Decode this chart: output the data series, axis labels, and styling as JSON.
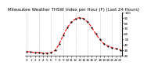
{
  "title": "Milwaukee Weather THSW Index per Hour (F) (Last 24 Hours)",
  "hours": [
    0,
    1,
    2,
    3,
    4,
    5,
    6,
    7,
    8,
    9,
    10,
    11,
    12,
    13,
    14,
    15,
    16,
    17,
    18,
    19,
    20,
    21,
    22,
    23
  ],
  "values": [
    28,
    27,
    26,
    26,
    25,
    25,
    26,
    30,
    42,
    58,
    72,
    82,
    88,
    90,
    88,
    82,
    72,
    60,
    50,
    42,
    38,
    35,
    33,
    31
  ],
  "line_color": "#ff0000",
  "marker_color": "#000000",
  "bg_color": "#ffffff",
  "grid_color": "#aaaaaa",
  "grid_hours": [
    0,
    3,
    6,
    9,
    12,
    15,
    18,
    21,
    23
  ],
  "ylim": [
    20,
    100
  ],
  "yticks": [
    20,
    30,
    40,
    50,
    60,
    70,
    80,
    90,
    100
  ],
  "title_fontsize": 4.0,
  "tick_fontsize": 3.0,
  "line_width": 0.8,
  "marker_size": 1.2
}
